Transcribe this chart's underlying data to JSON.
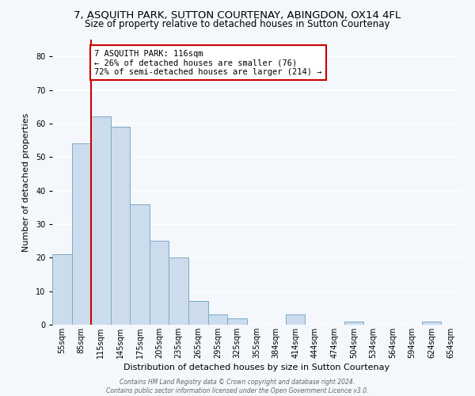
{
  "title": "7, ASQUITH PARK, SUTTON COURTENAY, ABINGDON, OX14 4FL",
  "subtitle": "Size of property relative to detached houses in Sutton Courtenay",
  "xlabel": "Distribution of detached houses by size in Sutton Courtenay",
  "ylabel": "Number of detached properties",
  "bin_labels": [
    "55sqm",
    "85sqm",
    "115sqm",
    "145sqm",
    "175sqm",
    "205sqm",
    "235sqm",
    "265sqm",
    "295sqm",
    "325sqm",
    "355sqm",
    "384sqm",
    "414sqm",
    "444sqm",
    "474sqm",
    "504sqm",
    "534sqm",
    "564sqm",
    "594sqm",
    "624sqm",
    "654sqm"
  ],
  "bar_heights": [
    21,
    54,
    62,
    59,
    36,
    25,
    20,
    7,
    3,
    2,
    0,
    0,
    3,
    0,
    0,
    1,
    0,
    0,
    0,
    1,
    0
  ],
  "bar_color": "#ccdcec",
  "bar_edge_color": "#7aaac8",
  "ylim": [
    0,
    85
  ],
  "yticks": [
    0,
    10,
    20,
    30,
    40,
    50,
    60,
    70,
    80
  ],
  "property_line_bin_index": 2,
  "property_line_color": "#cc0000",
  "annotation_text": "7 ASQUITH PARK: 116sqm\n← 26% of detached houses are smaller (76)\n72% of semi-detached houses are larger (214) →",
  "annotation_box_color": "#cc0000",
  "footer_line1": "Contains HM Land Registry data © Crown copyright and database right 2024.",
  "footer_line2": "Contains public sector information licensed under the Open Government Licence v3.0.",
  "background_color": "#f4f8fc",
  "plot_background_color": "#f4f8fc",
  "grid_color": "#ffffff",
  "title_fontsize": 9.5,
  "subtitle_fontsize": 8.5,
  "ylabel_fontsize": 8,
  "xlabel_fontsize": 8,
  "tick_fontsize": 7,
  "annotation_fontsize": 7.5
}
